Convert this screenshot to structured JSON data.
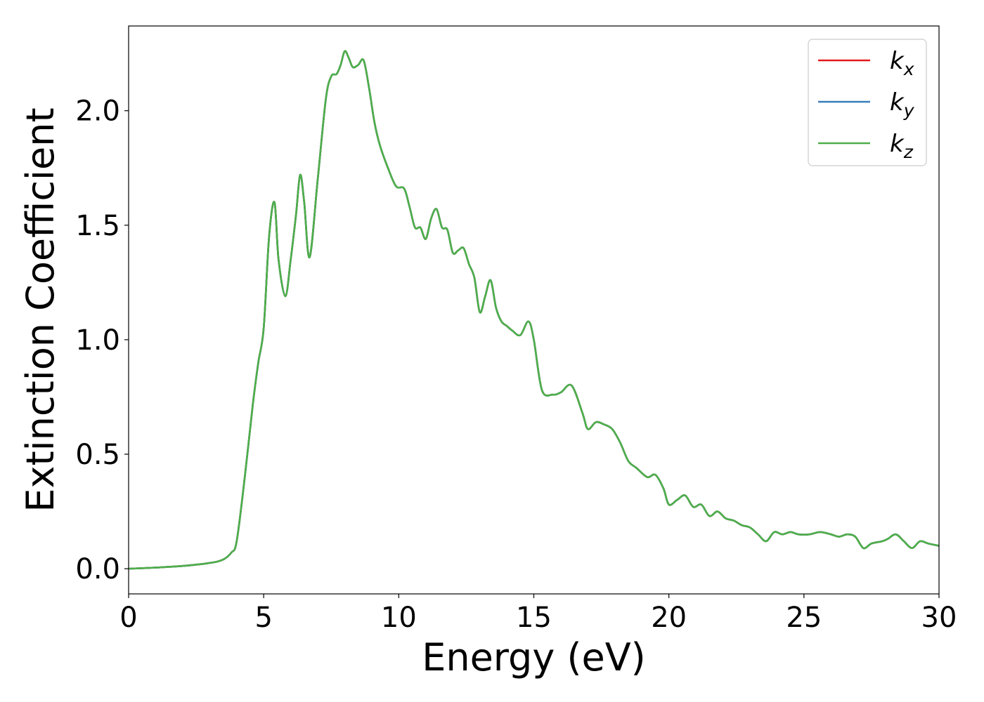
{
  "chart_data": {
    "type": "line",
    "title": "",
    "xlabel": "Energy (eV)",
    "ylabel": "Extinction Coefficient",
    "xlim": [
      0,
      30
    ],
    "ylim": [
      -0.11,
      2.37
    ],
    "x_ticks": [
      0,
      5,
      10,
      15,
      20,
      25,
      30
    ],
    "y_ticks": [
      0.0,
      0.5,
      1.0,
      1.5,
      2.0
    ],
    "x_tick_labels": [
      "0",
      "5",
      "10",
      "15",
      "20",
      "25",
      "30"
    ],
    "y_tick_labels": [
      "0.0",
      "0.5",
      "1.0",
      "1.5",
      "2.0"
    ],
    "grid": false,
    "legend_position": "top-right",
    "series": [
      {
        "name": "k_x",
        "label_base": "k",
        "label_sub": "x",
        "color": "#e41a1c",
        "x": [
          0,
          1,
          2,
          3,
          3.5,
          3.8,
          4.0,
          4.3,
          4.6,
          4.8,
          5.0,
          5.2,
          5.4,
          5.55,
          5.8,
          6.0,
          6.2,
          6.35,
          6.5,
          6.7,
          7.0,
          7.3,
          7.5,
          7.7,
          7.85,
          8.0,
          8.15,
          8.3,
          8.5,
          8.7,
          8.9,
          9.1,
          9.3,
          9.6,
          9.9,
          10.2,
          10.4,
          10.6,
          10.8,
          11.0,
          11.2,
          11.4,
          11.6,
          11.8,
          12.0,
          12.2,
          12.4,
          12.6,
          12.8,
          13.0,
          13.2,
          13.4,
          13.6,
          13.8,
          14.0,
          14.2,
          14.5,
          14.8,
          15.0,
          15.3,
          15.7,
          16.0,
          16.4,
          16.8,
          17.0,
          17.3,
          17.6,
          17.9,
          18.2,
          18.5,
          18.8,
          19.2,
          19.5,
          19.8,
          20.0,
          20.3,
          20.6,
          20.9,
          21.2,
          21.5,
          21.8,
          22.1,
          22.4,
          22.7,
          23.0,
          23.3,
          23.6,
          23.9,
          24.2,
          24.5,
          24.8,
          25.2,
          25.6,
          26.0,
          26.3,
          26.6,
          26.9,
          27.2,
          27.5,
          27.9,
          28.1,
          28.4,
          28.7,
          29.0,
          29.3,
          29.6,
          30.0
        ],
        "y": [
          0.0,
          0.005,
          0.012,
          0.025,
          0.04,
          0.07,
          0.12,
          0.4,
          0.72,
          0.9,
          1.05,
          1.45,
          1.6,
          1.35,
          1.19,
          1.35,
          1.55,
          1.72,
          1.6,
          1.36,
          1.7,
          2.05,
          2.15,
          2.16,
          2.2,
          2.26,
          2.23,
          2.19,
          2.2,
          2.22,
          2.1,
          1.95,
          1.85,
          1.75,
          1.67,
          1.66,
          1.58,
          1.49,
          1.49,
          1.44,
          1.53,
          1.57,
          1.49,
          1.48,
          1.38,
          1.39,
          1.4,
          1.33,
          1.27,
          1.12,
          1.19,
          1.26,
          1.14,
          1.08,
          1.06,
          1.04,
          1.02,
          1.08,
          1.0,
          0.78,
          0.76,
          0.77,
          0.8,
          0.68,
          0.61,
          0.64,
          0.63,
          0.61,
          0.55,
          0.47,
          0.44,
          0.4,
          0.41,
          0.35,
          0.28,
          0.3,
          0.32,
          0.27,
          0.28,
          0.23,
          0.25,
          0.22,
          0.21,
          0.19,
          0.18,
          0.15,
          0.12,
          0.16,
          0.15,
          0.16,
          0.15,
          0.15,
          0.16,
          0.15,
          0.14,
          0.15,
          0.14,
          0.09,
          0.11,
          0.12,
          0.13,
          0.15,
          0.12,
          0.09,
          0.12,
          0.11,
          0.1
        ]
      },
      {
        "name": "k_y",
        "label_base": "k",
        "label_sub": "y",
        "color": "#377eb8",
        "x": [
          0,
          1,
          2,
          3,
          3.5,
          3.8,
          4.0,
          4.3,
          4.6,
          4.8,
          5.0,
          5.2,
          5.4,
          5.55,
          5.8,
          6.0,
          6.2,
          6.35,
          6.5,
          6.7,
          7.0,
          7.3,
          7.5,
          7.7,
          7.85,
          8.0,
          8.15,
          8.3,
          8.5,
          8.7,
          8.9,
          9.1,
          9.3,
          9.6,
          9.9,
          10.2,
          10.4,
          10.6,
          10.8,
          11.0,
          11.2,
          11.4,
          11.6,
          11.8,
          12.0,
          12.2,
          12.4,
          12.6,
          12.8,
          13.0,
          13.2,
          13.4,
          13.6,
          13.8,
          14.0,
          14.2,
          14.5,
          14.8,
          15.0,
          15.3,
          15.7,
          16.0,
          16.4,
          16.8,
          17.0,
          17.3,
          17.6,
          17.9,
          18.2,
          18.5,
          18.8,
          19.2,
          19.5,
          19.8,
          20.0,
          20.3,
          20.6,
          20.9,
          21.2,
          21.5,
          21.8,
          22.1,
          22.4,
          22.7,
          23.0,
          23.3,
          23.6,
          23.9,
          24.2,
          24.5,
          24.8,
          25.2,
          25.6,
          26.0,
          26.3,
          26.6,
          26.9,
          27.2,
          27.5,
          27.9,
          28.1,
          28.4,
          28.7,
          29.0,
          29.3,
          29.6,
          30.0
        ],
        "y": [
          0.0,
          0.005,
          0.012,
          0.025,
          0.04,
          0.07,
          0.12,
          0.4,
          0.72,
          0.9,
          1.05,
          1.45,
          1.6,
          1.35,
          1.19,
          1.35,
          1.55,
          1.72,
          1.6,
          1.36,
          1.7,
          2.05,
          2.15,
          2.16,
          2.2,
          2.26,
          2.23,
          2.19,
          2.2,
          2.22,
          2.1,
          1.95,
          1.85,
          1.75,
          1.67,
          1.66,
          1.58,
          1.49,
          1.49,
          1.44,
          1.53,
          1.57,
          1.49,
          1.48,
          1.38,
          1.39,
          1.4,
          1.33,
          1.27,
          1.12,
          1.19,
          1.26,
          1.14,
          1.08,
          1.06,
          1.04,
          1.02,
          1.08,
          1.0,
          0.78,
          0.76,
          0.77,
          0.8,
          0.68,
          0.61,
          0.64,
          0.63,
          0.61,
          0.55,
          0.47,
          0.44,
          0.4,
          0.41,
          0.35,
          0.28,
          0.3,
          0.32,
          0.27,
          0.28,
          0.23,
          0.25,
          0.22,
          0.21,
          0.19,
          0.18,
          0.15,
          0.12,
          0.16,
          0.15,
          0.16,
          0.15,
          0.15,
          0.16,
          0.15,
          0.14,
          0.15,
          0.14,
          0.09,
          0.11,
          0.12,
          0.13,
          0.15,
          0.12,
          0.09,
          0.12,
          0.11,
          0.1
        ]
      },
      {
        "name": "k_z",
        "label_base": "k",
        "label_sub": "z",
        "color": "#4daf4a",
        "x": [
          0,
          1,
          2,
          3,
          3.5,
          3.8,
          4.0,
          4.3,
          4.6,
          4.8,
          5.0,
          5.2,
          5.4,
          5.55,
          5.8,
          6.0,
          6.2,
          6.35,
          6.5,
          6.7,
          7.0,
          7.3,
          7.5,
          7.7,
          7.85,
          8.0,
          8.15,
          8.3,
          8.5,
          8.7,
          8.9,
          9.1,
          9.3,
          9.6,
          9.9,
          10.2,
          10.4,
          10.6,
          10.8,
          11.0,
          11.2,
          11.4,
          11.6,
          11.8,
          12.0,
          12.2,
          12.4,
          12.6,
          12.8,
          13.0,
          13.2,
          13.4,
          13.6,
          13.8,
          14.0,
          14.2,
          14.5,
          14.8,
          15.0,
          15.3,
          15.7,
          16.0,
          16.4,
          16.8,
          17.0,
          17.3,
          17.6,
          17.9,
          18.2,
          18.5,
          18.8,
          19.2,
          19.5,
          19.8,
          20.0,
          20.3,
          20.6,
          20.9,
          21.2,
          21.5,
          21.8,
          22.1,
          22.4,
          22.7,
          23.0,
          23.3,
          23.6,
          23.9,
          24.2,
          24.5,
          24.8,
          25.2,
          25.6,
          26.0,
          26.3,
          26.6,
          26.9,
          27.2,
          27.5,
          27.9,
          28.1,
          28.4,
          28.7,
          29.0,
          29.3,
          29.6,
          30.0
        ],
        "y": [
          0.0,
          0.005,
          0.012,
          0.025,
          0.04,
          0.07,
          0.12,
          0.4,
          0.72,
          0.9,
          1.05,
          1.45,
          1.6,
          1.35,
          1.19,
          1.35,
          1.55,
          1.72,
          1.6,
          1.36,
          1.7,
          2.05,
          2.15,
          2.16,
          2.2,
          2.26,
          2.23,
          2.19,
          2.2,
          2.22,
          2.1,
          1.95,
          1.85,
          1.75,
          1.67,
          1.66,
          1.58,
          1.49,
          1.49,
          1.44,
          1.53,
          1.57,
          1.49,
          1.48,
          1.38,
          1.39,
          1.4,
          1.33,
          1.27,
          1.12,
          1.19,
          1.26,
          1.14,
          1.08,
          1.06,
          1.04,
          1.02,
          1.08,
          1.0,
          0.78,
          0.76,
          0.77,
          0.8,
          0.68,
          0.61,
          0.64,
          0.63,
          0.61,
          0.55,
          0.47,
          0.44,
          0.4,
          0.41,
          0.35,
          0.28,
          0.3,
          0.32,
          0.27,
          0.28,
          0.23,
          0.25,
          0.22,
          0.21,
          0.19,
          0.18,
          0.15,
          0.12,
          0.16,
          0.15,
          0.16,
          0.15,
          0.15,
          0.16,
          0.15,
          0.14,
          0.15,
          0.14,
          0.09,
          0.11,
          0.12,
          0.13,
          0.15,
          0.12,
          0.09,
          0.12,
          0.11,
          0.1
        ]
      }
    ]
  }
}
